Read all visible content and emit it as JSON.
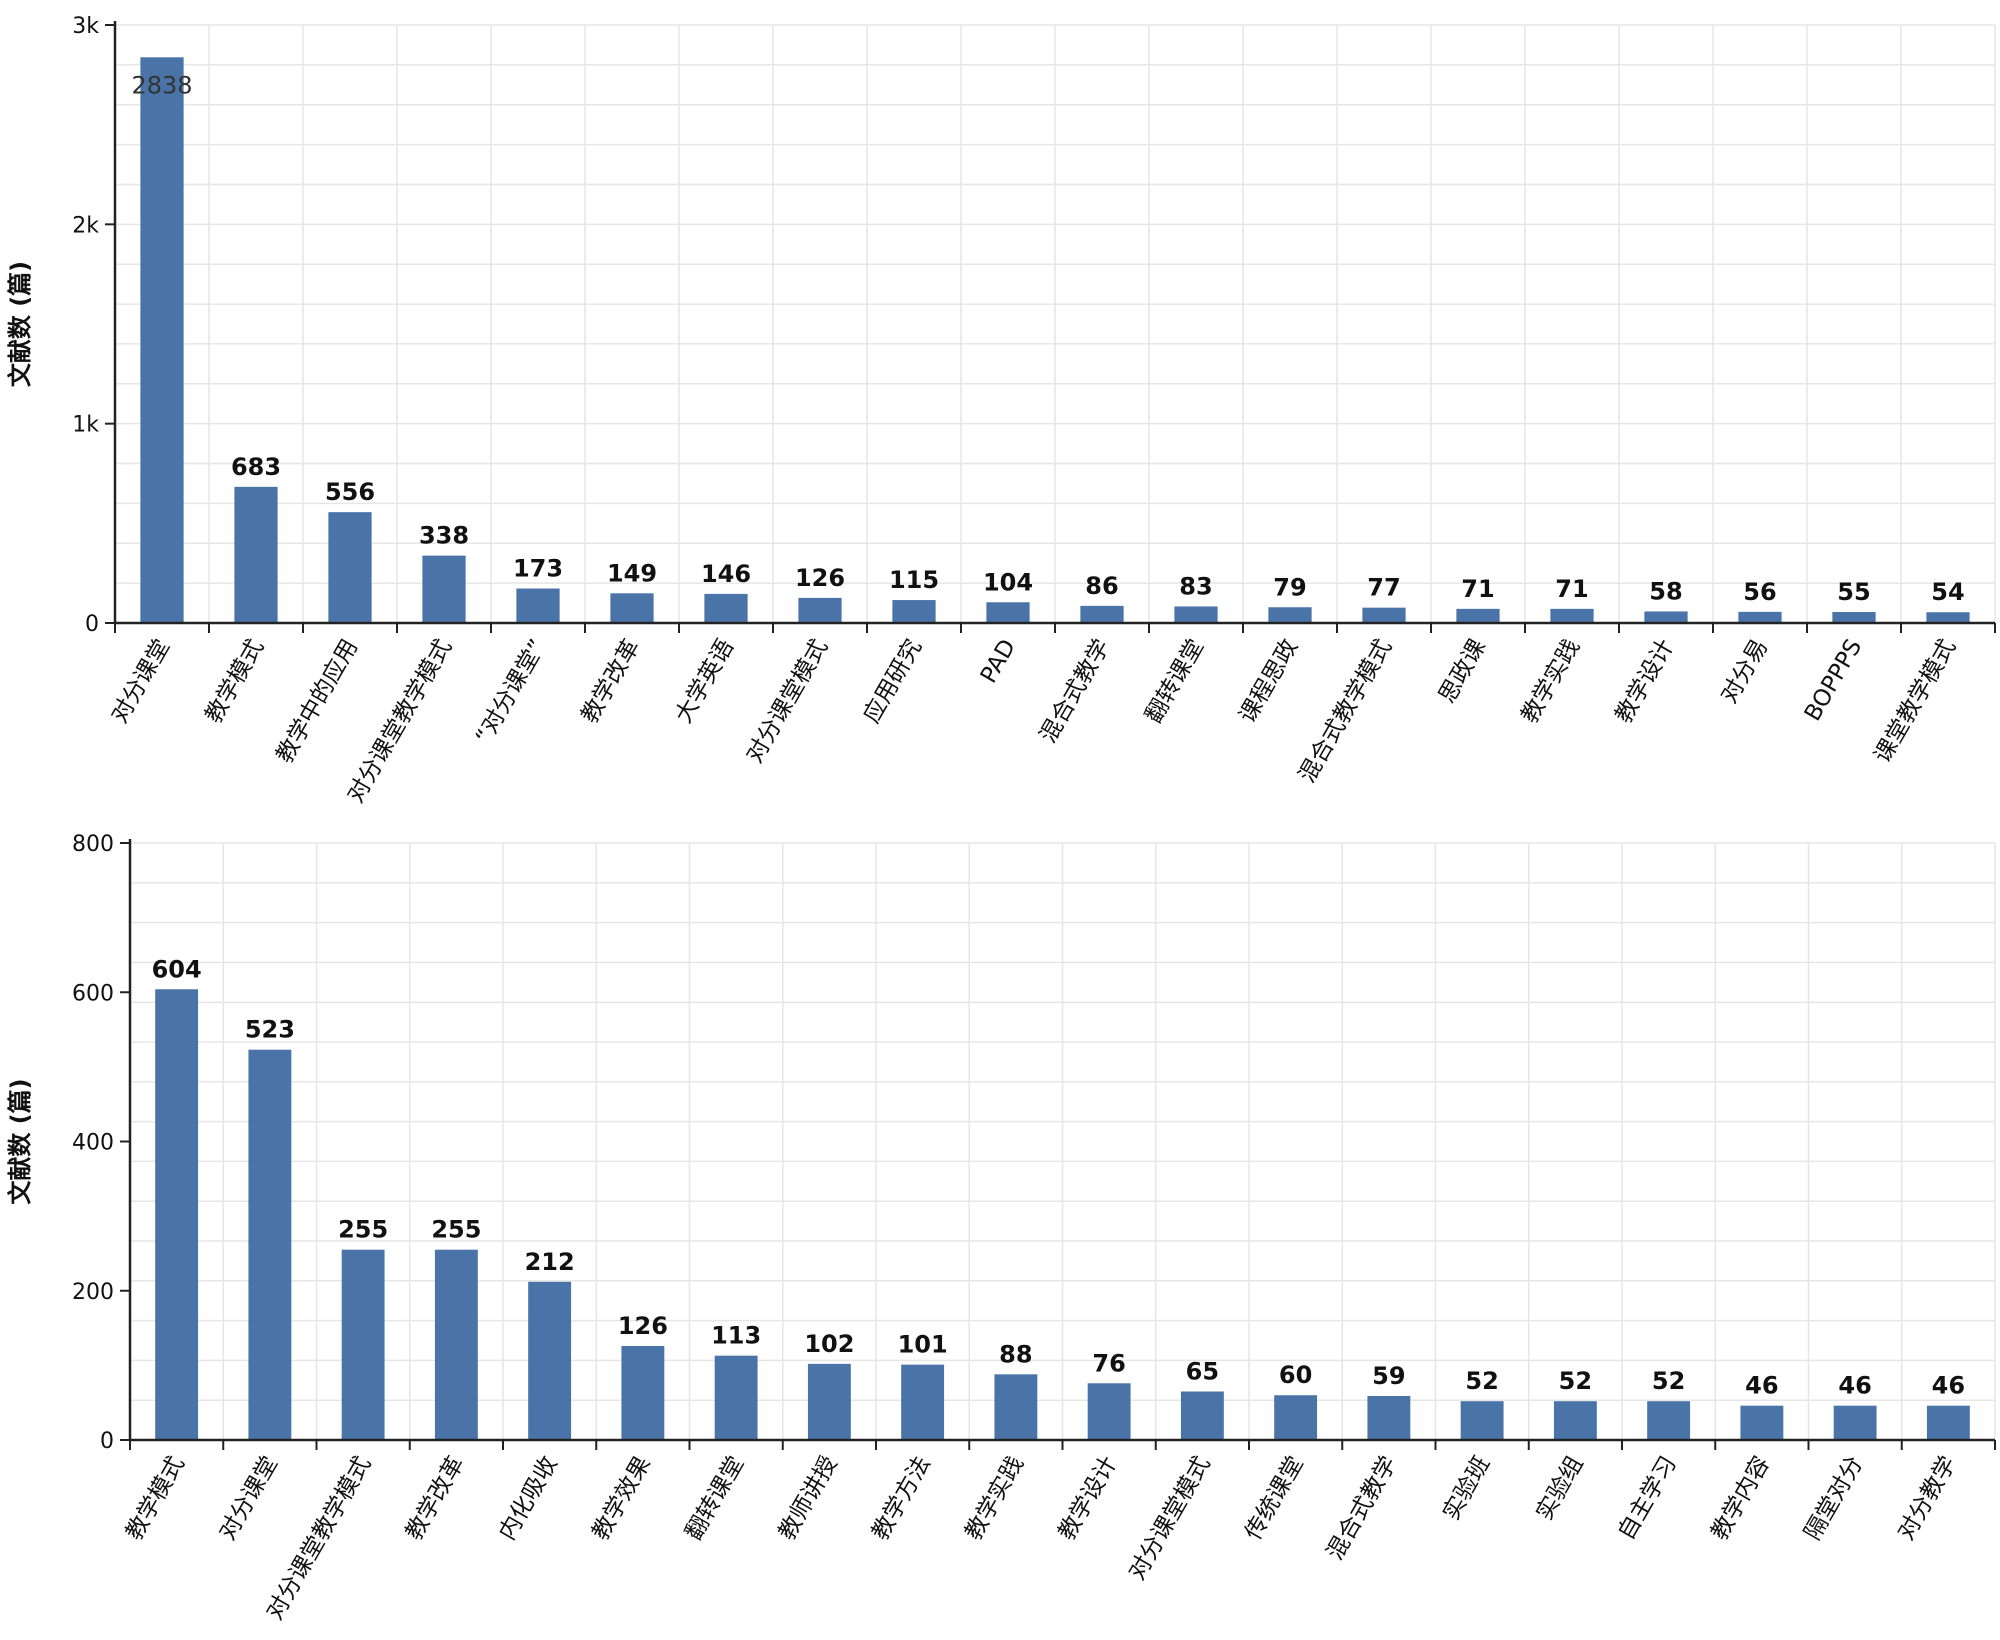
{
  "chart_data": [
    {
      "type": "bar",
      "title": "",
      "xlabel": "",
      "ylabel": "文献数 (篇)",
      "ylim": [
        0,
        3000
      ],
      "yticks": [
        0,
        1000,
        2000,
        3000
      ],
      "ytick_labels": [
        "0",
        "1k",
        "2k",
        "3k"
      ],
      "grid": true,
      "color": "#4a74a8",
      "categories": [
        "对分课堂",
        "教学模式",
        "教学中的应用",
        "对分课堂教学模式",
        "“对分课堂”",
        "教学改革",
        "大学英语",
        "对分课堂模式",
        "应用研究",
        "PAD",
        "混合式教学",
        "翻转课堂",
        "课程思政",
        "混合式教学模式",
        "思政课",
        "教学实践",
        "教学设计",
        "对分易",
        "BOPPPS",
        "课堂教学模式"
      ],
      "values": [
        2838,
        683,
        556,
        338,
        173,
        149,
        146,
        126,
        115,
        104,
        86,
        83,
        79,
        77,
        71,
        71,
        58,
        56,
        55,
        54
      ]
    },
    {
      "type": "bar",
      "title": "",
      "xlabel": "",
      "ylabel": "文献数 (篇)",
      "ylim": [
        0,
        800
      ],
      "yticks": [
        0,
        200,
        400,
        600,
        800
      ],
      "ytick_labels": [
        "0",
        "200",
        "400",
        "600",
        "800"
      ],
      "grid": true,
      "color": "#4a74a8",
      "categories": [
        "教学模式",
        "对分课堂",
        "对分课堂教学模式",
        "教学改革",
        "内化吸收",
        "教学效果",
        "翻转课堂",
        "教师讲授",
        "教学方法",
        "教学实践",
        "教学设计",
        "对分课堂模式",
        "传统课堂",
        "混合式教学",
        "实验班",
        "实验组",
        "自主学习",
        "教学内容",
        "隔堂对分",
        "对分教学"
      ],
      "values": [
        604,
        523,
        255,
        255,
        212,
        126,
        113,
        102,
        101,
        88,
        76,
        65,
        60,
        59,
        52,
        52,
        52,
        46,
        46,
        46
      ]
    }
  ]
}
